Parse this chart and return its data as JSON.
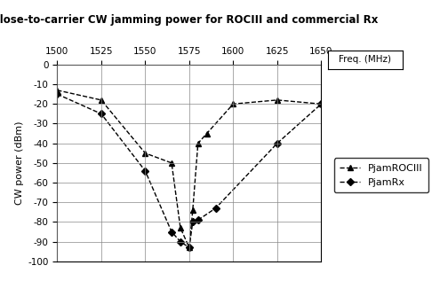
{
  "title": "Close-to-carrier CW jamming power for ROCIII and commercial Rx",
  "xlabel_top": "Freq. (MHz)",
  "ylabel": "CW power (dBm)",
  "xmin": 1500,
  "xmax": 1650,
  "ymin": -100,
  "ymax": 0,
  "xticks": [
    1500,
    1525,
    1550,
    1575,
    1600,
    1625,
    1650
  ],
  "yticks": [
    0,
    -10,
    -20,
    -30,
    -40,
    -50,
    -60,
    -70,
    -80,
    -90,
    -100
  ],
  "rociii_x": [
    1500,
    1525,
    1550,
    1565,
    1570,
    1575,
    1577,
    1580,
    1585,
    1600,
    1625,
    1650
  ],
  "rociii_y": [
    -13,
    -18,
    -45,
    -50,
    -83,
    -93,
    -74,
    -40,
    -35,
    -20,
    -18,
    -20
  ],
  "rx_x": [
    1500,
    1525,
    1550,
    1565,
    1570,
    1575,
    1577,
    1580,
    1590,
    1625,
    1650
  ],
  "rx_y": [
    -15,
    -25,
    -54,
    -85,
    -90,
    -93,
    -80,
    -79,
    -73,
    -40,
    -20
  ],
  "line_color": "#000000",
  "background_color": "#ffffff",
  "legend_rociii": "PjamROCIII",
  "legend_rx": "PjamRx"
}
